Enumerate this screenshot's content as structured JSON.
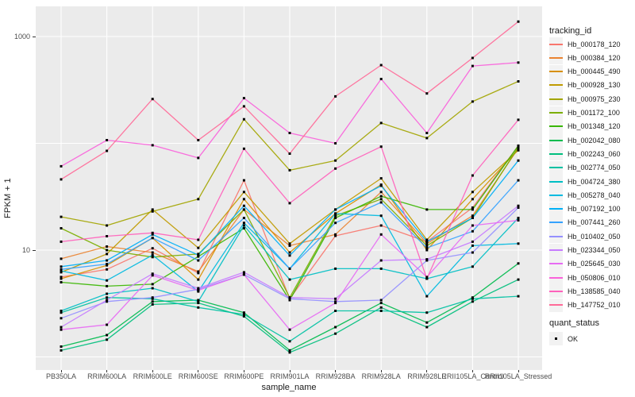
{
  "chart_data": {
    "type": "line",
    "title": "",
    "xlabel": "sample_name",
    "ylabel": "FPKM + 1",
    "y_scale": "log10",
    "ylim": [
      1,
      1500
    ],
    "y_tick_labels": [
      "1000",
      "10"
    ],
    "y_tick_values": [
      1000,
      10
    ],
    "y_gridline_values": [
      1,
      10,
      100,
      1000
    ],
    "grid": true,
    "panel_bg": "#EBEBEB",
    "grid_color": "#FFFFFF",
    "point_color": "#000000",
    "legend_position": "right",
    "legend_title": "tracking_id",
    "legend2_title": "quant_status",
    "legend2_items": [
      "OK"
    ],
    "categories": [
      "PB350LA",
      "RRIM600LA",
      "RRIM600LE",
      "RRIM600SE",
      "RRIM600PE",
      "RRIM901LA",
      "RRIM928BA",
      "RRIM928LA",
      "RRIM928LE",
      "RRII105LA_Control",
      "RRII105LA_Stressed"
    ],
    "series": [
      {
        "name": "Hb_000178_120",
        "color": "#F8766D",
        "values": [
          5.6,
          6.6,
          10.4,
          6.1,
          45,
          3.5,
          13.6,
          17,
          12,
          25,
          95
        ]
      },
      {
        "name": "Hb_000384_120",
        "color": "#EA8331",
        "values": [
          8.3,
          10.8,
          9.5,
          6.3,
          24,
          11,
          14,
          35,
          11.5,
          21,
          90
        ]
      },
      {
        "name": "Hb_000445_490",
        "color": "#D89000",
        "values": [
          5.4,
          7.2,
          13,
          5.3,
          30,
          9.5,
          22,
          41,
          10,
          30,
          88
        ]
      },
      {
        "name": "Hb_000928_130",
        "color": "#C09B00",
        "values": [
          6.2,
          9.2,
          24,
          10.5,
          35,
          11.5,
          24,
          47,
          12.5,
          35,
          86
        ]
      },
      {
        "name": "Hb_000975_230",
        "color": "#A3A500",
        "values": [
          20.5,
          17,
          23,
          30,
          168,
          56,
          69,
          155,
          112,
          246,
          380
        ]
      },
      {
        "name": "Hb_001172_100",
        "color": "#7CAE00",
        "values": [
          16,
          10,
          8.6,
          9.2,
          24,
          3.6,
          21,
          30,
          11,
          20,
          92
        ]
      },
      {
        "name": "Hb_001348_120",
        "color": "#39B600",
        "values": [
          5.0,
          4.6,
          4.8,
          8.7,
          16,
          3.4,
          20,
          32,
          24,
          24,
          95
        ]
      },
      {
        "name": "Hb_002042_080",
        "color": "#00BB4E",
        "values": [
          1.25,
          1.6,
          3.3,
          3.4,
          2.6,
          1.15,
          1.9,
          3.2,
          2.1,
          3.6,
          7.5
        ]
      },
      {
        "name": "Hb_002243_060",
        "color": "#00BF7D",
        "values": [
          1.15,
          1.45,
          3.1,
          3.2,
          2.4,
          1.1,
          1.65,
          2.9,
          1.9,
          3.3,
          5.3
        ]
      },
      {
        "name": "Hb_002774_050",
        "color": "#00C1A3",
        "values": [
          2.6,
          3.6,
          3.5,
          2.9,
          2.5,
          1.4,
          2.7,
          2.7,
          2.6,
          3.5,
          3.7
        ]
      },
      {
        "name": "Hb_004724_380",
        "color": "#00BFC4",
        "values": [
          2.7,
          3.9,
          4.4,
          3.3,
          17,
          5.3,
          6.7,
          6.7,
          5.4,
          7.0,
          20
        ]
      },
      {
        "name": "Hb_005278_040",
        "color": "#00BAE0",
        "values": [
          6.4,
          5.2,
          9.0,
          4.1,
          18,
          6.7,
          22,
          21,
          3.7,
          11,
          11.5
        ]
      },
      {
        "name": "Hb_007192_100",
        "color": "#00B0F6",
        "values": [
          7.0,
          8.0,
          14,
          9.0,
          26,
          8.9,
          24,
          40,
          12,
          20,
          69
        ]
      },
      {
        "name": "Hb_007441_260",
        "color": "#35A2FF",
        "values": [
          6.6,
          7.4,
          13,
          8.0,
          20,
          6.7,
          18,
          28,
          10.5,
          15,
          45
        ]
      },
      {
        "name": "Hb_010402_050",
        "color": "#9590FF",
        "values": [
          2.3,
          3.3,
          3.6,
          4.3,
          5.9,
          3.5,
          3.3,
          3.4,
          8.0,
          9.5,
          25
        ]
      },
      {
        "name": "Hb_023344_050",
        "color": "#C77CFF",
        "values": [
          1.9,
          3.4,
          6.0,
          4.4,
          6.2,
          3.6,
          3.5,
          8.0,
          8.2,
          12,
          26
        ]
      },
      {
        "name": "Hb_025645_030",
        "color": "#E76BF3",
        "values": [
          1.8,
          2.0,
          5.8,
          4.2,
          5.9,
          1.8,
          3.2,
          14,
          5.6,
          17,
          19
        ]
      },
      {
        "name": "Hb_050806_010",
        "color": "#FA62DB",
        "values": [
          61,
          107,
          96,
          73,
          265,
          125,
          100,
          400,
          125,
          530,
          570
        ]
      },
      {
        "name": "Hb_138585_040",
        "color": "#FF62BC",
        "values": [
          12,
          13.5,
          14.5,
          12.5,
          89,
          27.5,
          58,
          93,
          5.4,
          50,
          166
        ]
      },
      {
        "name": "Hb_147752_010",
        "color": "#FF6A98",
        "values": [
          46,
          85,
          260,
          107,
          222,
          80,
          275,
          540,
          293,
          630,
          1380
        ]
      }
    ]
  }
}
